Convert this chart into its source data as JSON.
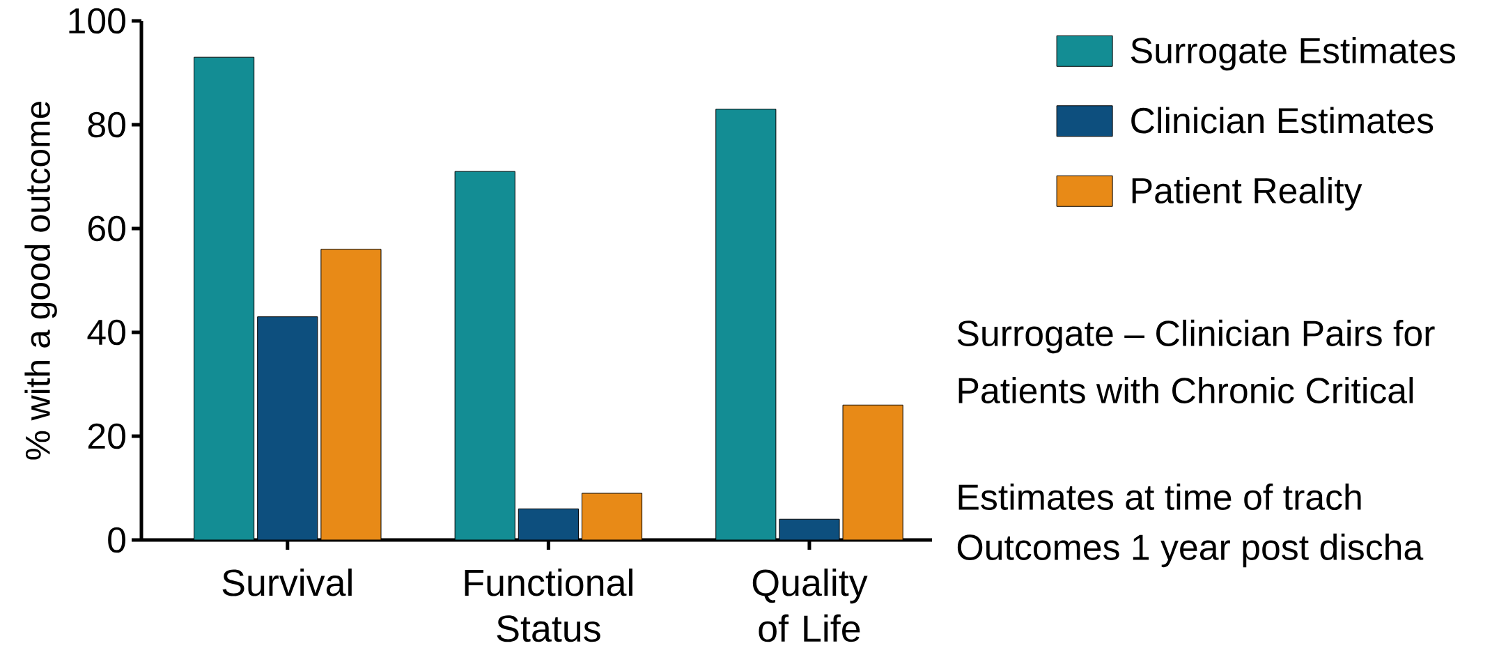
{
  "chart_data": {
    "type": "bar",
    "ylabel": "% with a good outcome",
    "categories": [
      "Survival",
      "Functional Status",
      "Quality of Life"
    ],
    "series": [
      {
        "name": "Surrogate Estimates",
        "color": "#138d94",
        "values": [
          93,
          71,
          83
        ]
      },
      {
        "name": "Clinician Estimates",
        "color": "#0d4f7e",
        "values": [
          43,
          6,
          4
        ]
      },
      {
        "name": "Patient Reality",
        "color": "#e88a17",
        "values": [
          56,
          9,
          26
        ]
      }
    ],
    "ylim": [
      0,
      100
    ],
    "yticks": [
      0,
      20,
      40,
      60,
      80,
      100
    ],
    "legend": "right",
    "annotations": [
      "Surrogate – Clinician Pairs for",
      "Patients with Chronic Critical",
      "Estimates at time of trach",
      "Outcomes 1 year post discha"
    ]
  }
}
